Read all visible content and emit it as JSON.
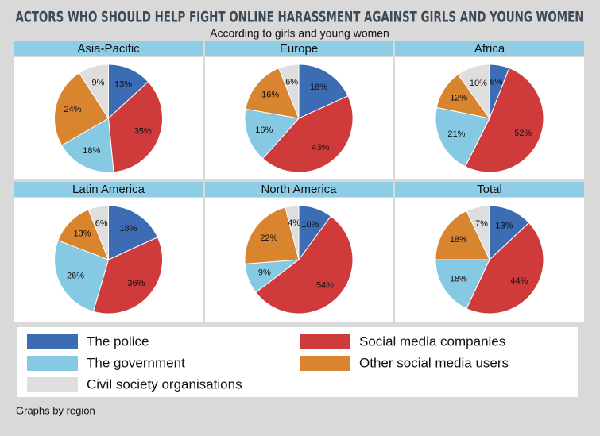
{
  "title": "ACTORS WHO SHOULD HELP FIGHT ONLINE HARASSMENT AGAINST GIRLS AND YOUNG WOMEN",
  "subtitle": "According to girls and young women",
  "legend": [
    {
      "name": "The police",
      "color": "#3b6cb4"
    },
    {
      "name": "Social media companies",
      "color": "#cf3b3b"
    },
    {
      "name": "The government",
      "color": "#86c9e3"
    },
    {
      "name": "Other social media users",
      "color": "#d9842f"
    },
    {
      "name": "Civil society organisations",
      "color": "#dedede"
    }
  ],
  "chart_data": [
    {
      "type": "pie",
      "title": "Asia-Pacific",
      "values": [
        13,
        35,
        18,
        24,
        9
      ],
      "value_labels": [
        "13%",
        "35%",
        "18%",
        "24%",
        "9%"
      ]
    },
    {
      "type": "pie",
      "title": "Europe",
      "values": [
        18,
        43,
        16,
        16,
        6
      ],
      "value_labels": [
        "18%",
        "43%",
        "16%",
        "16%",
        "6%"
      ]
    },
    {
      "type": "pie",
      "title": "Africa",
      "values": [
        6,
        52,
        21,
        12,
        10
      ],
      "value_labels": [
        "6%",
        "52%",
        "21%",
        "12%",
        "10%"
      ]
    },
    {
      "type": "pie",
      "title": "Latin America",
      "values": [
        18,
        36,
        26,
        13,
        6
      ],
      "value_labels": [
        "18%",
        "36%",
        "26%",
        "13%",
        "6%"
      ]
    },
    {
      "type": "pie",
      "title": "North America",
      "values": [
        10,
        54,
        9,
        22,
        4
      ],
      "value_labels": [
        "10%",
        "54%",
        "9%",
        "22%",
        "4%"
      ]
    },
    {
      "type": "pie",
      "title": "Total",
      "values": [
        13,
        44,
        18,
        18,
        7
      ],
      "value_labels": [
        "13%",
        "44%",
        "18%",
        "18%",
        "7%"
      ]
    }
  ],
  "note": "Graphs by region"
}
